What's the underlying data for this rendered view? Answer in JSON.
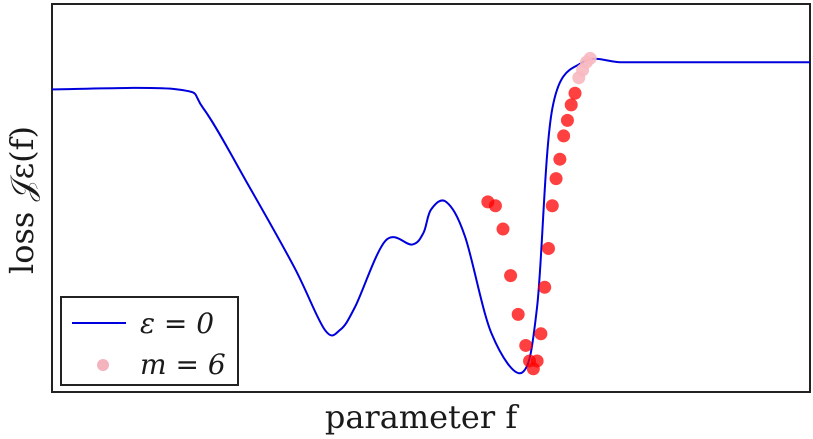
{
  "chart_data": {
    "type": "line",
    "xlabel": "parameter f",
    "ylabel": "loss 𝒥ε(f)",
    "xlim": [
      0,
      1
    ],
    "ylim": [
      0,
      1
    ],
    "grid": false,
    "legend_position": "bottom-left",
    "ticks": "none",
    "series": [
      {
        "name": "ε = 0",
        "kind": "line",
        "color": "#0000dd",
        "x": [
          0.0,
          0.165,
          0.2,
          0.26,
          0.32,
          0.36,
          0.38,
          0.4,
          0.44,
          0.475,
          0.49,
          0.5,
          0.52,
          0.545,
          0.58,
          0.62,
          0.64,
          0.66,
          0.7,
          0.75,
          0.8,
          1.0
        ],
        "y": [
          0.78,
          0.78,
          0.73,
          0.53,
          0.32,
          0.16,
          0.16,
          0.22,
          0.39,
          0.38,
          0.41,
          0.47,
          0.49,
          0.4,
          0.15,
          0.05,
          0.22,
          0.73,
          0.85,
          0.85,
          0.85,
          0.85
        ]
      },
      {
        "name": "m = 6",
        "kind": "scatter",
        "color": "#ff0000",
        "light_color": "#f7b8c0",
        "x": [
          0.575,
          0.585,
          0.595,
          0.605,
          0.615,
          0.625,
          0.63,
          0.635,
          0.64,
          0.645,
          0.65,
          0.655,
          0.66,
          0.665,
          0.67,
          0.675,
          0.68,
          0.685,
          0.69,
          0.695,
          0.7,
          0.705,
          0.71
        ],
        "y": [
          0.49,
          0.48,
          0.42,
          0.3,
          0.2,
          0.12,
          0.08,
          0.06,
          0.08,
          0.15,
          0.27,
          0.37,
          0.48,
          0.55,
          0.6,
          0.66,
          0.7,
          0.74,
          0.77,
          0.81,
          0.83,
          0.85,
          0.86
        ]
      }
    ]
  }
}
